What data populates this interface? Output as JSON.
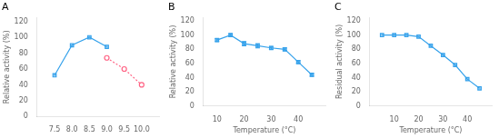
{
  "chart_data": [
    {
      "type": "line",
      "title": "A",
      "ylabel": "Relative activity (%)",
      "xlim": [
        7.0,
        10.5
      ],
      "xticks": [
        {
          "value": 7.5,
          "label": "7.5"
        },
        {
          "value": 8.0,
          "label": "8.0"
        },
        {
          "value": 8.5,
          "label": "8.5"
        },
        {
          "value": 9.0,
          "label": "9.0"
        },
        {
          "value": 9.5,
          "label": "9.5"
        },
        {
          "value": 10.0,
          "label": "10.0"
        }
      ],
      "ylim": [
        0,
        125
      ],
      "yticks": [
        0,
        20,
        40,
        60,
        80,
        100,
        120
      ],
      "grid": false,
      "series": [
        {
          "x": [
            7.5,
            8.0,
            8.5,
            9.0
          ],
          "values": [
            52,
            90,
            100,
            88
          ],
          "marker": "square",
          "line_style": "solid"
        },
        {
          "x": [
            9.0,
            9.5,
            10.0
          ],
          "values": [
            74,
            60,
            40
          ],
          "marker": "open_circle",
          "line_style": "dotted"
        }
      ]
    },
    {
      "type": "line",
      "title": "B",
      "xlabel": "Temperature (°C)",
      "ylabel": "Relative activity (%)",
      "xlim": [
        5,
        50
      ],
      "xticks": [
        10,
        20,
        30,
        40
      ],
      "ylim": [
        0,
        125
      ],
      "yticks": [
        0,
        20,
        40,
        60,
        80,
        100,
        120
      ],
      "grid": false,
      "series": [
        {
          "x": [
            10,
            15,
            20,
            25,
            30,
            35,
            40,
            45
          ],
          "values": [
            93,
            100,
            88,
            85,
            82,
            80,
            62,
            44
          ],
          "yerr": [
            2,
            2,
            3,
            3,
            2,
            2,
            2,
            2
          ],
          "marker": "square",
          "line_style": "solid"
        }
      ]
    },
    {
      "type": "line",
      "title": "C",
      "xlabel": "Temperature (°C)",
      "ylabel": "Residual activity (%)",
      "xlim": [
        0,
        50
      ],
      "xticks": [
        10,
        20,
        30,
        40
      ],
      "ylim": [
        0,
        125
      ],
      "yticks": [
        0,
        20,
        40,
        60,
        80,
        100,
        120
      ],
      "grid": false,
      "series": [
        {
          "x": [
            5,
            10,
            15,
            20,
            25,
            30,
            35,
            40,
            45
          ],
          "values": [
            100,
            100,
            100,
            98,
            85,
            72,
            58,
            38,
            25
          ],
          "marker": "square",
          "line_style": "solid"
        }
      ]
    }
  ]
}
